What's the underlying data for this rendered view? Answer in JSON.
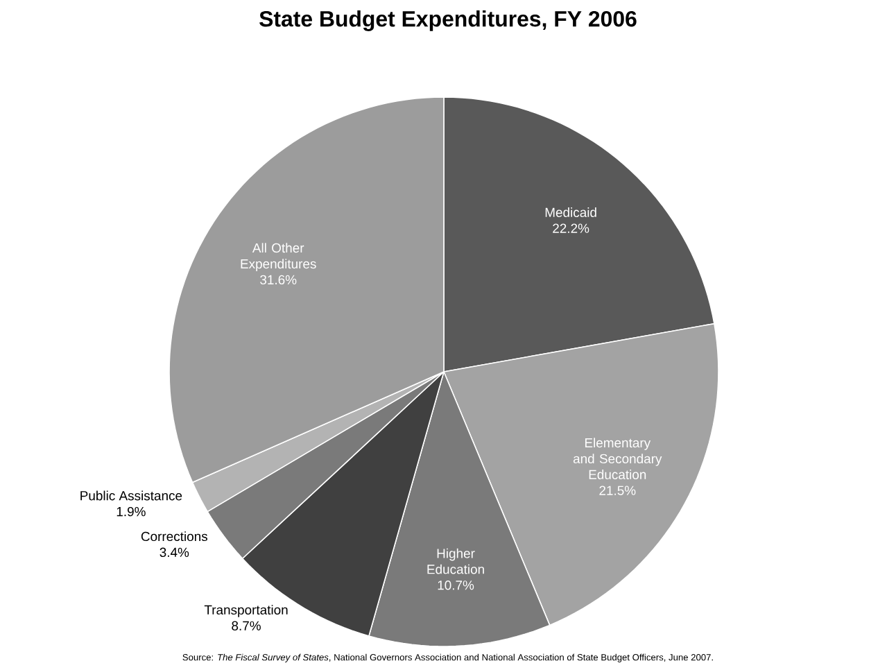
{
  "chart_data": {
    "type": "pie",
    "title": "State Budget Expenditures, FY 2006",
    "categories": [
      "Medicaid",
      "Elementary and Secondary Education",
      "Higher Education",
      "Transportation",
      "Corrections",
      "Public Assistance",
      "All Other Expenditures"
    ],
    "values": [
      22.2,
      21.5,
      10.7,
      8.7,
      3.4,
      1.9,
      31.6
    ],
    "value_labels": [
      "22.2%",
      "21.5%",
      "10.7%",
      "8.7%",
      "3.4%",
      "1.9%",
      "31.6%"
    ],
    "colors": [
      "#595959",
      "#a3a3a3",
      "#7a7a7a",
      "#404040",
      "#7a7a7a",
      "#b3b3b3",
      "#9c9c9c"
    ],
    "annotations": [
      "Source: *The Fiscal Survey of States*, National Governors Association and National Association of State Budget Officers, June 2007."
    ]
  }
}
